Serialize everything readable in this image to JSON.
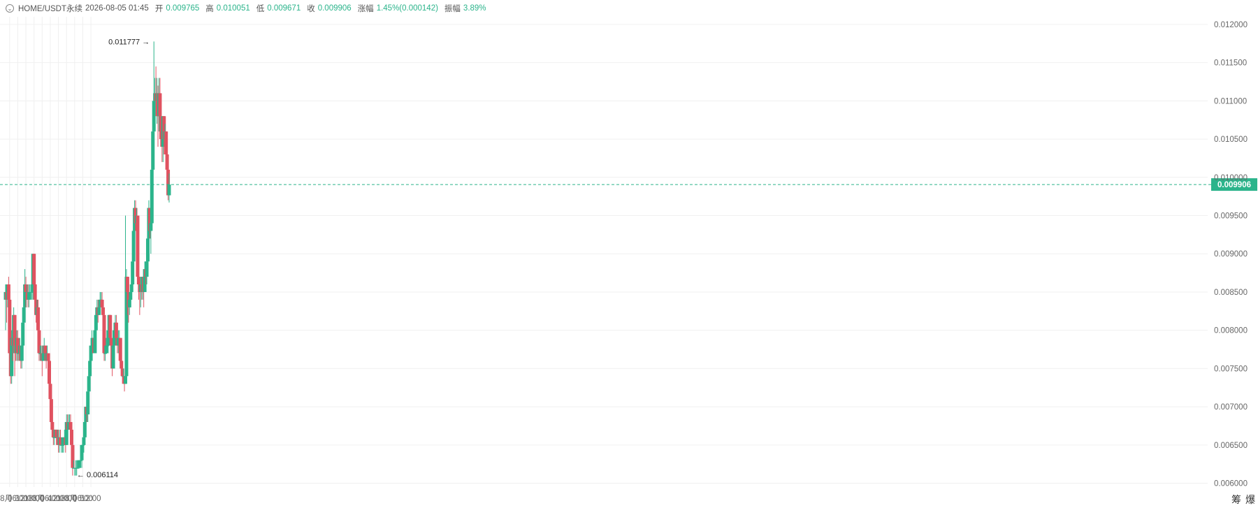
{
  "header": {
    "symbol": "HOME/USDT永续",
    "datetime": "2026-08-05 01:45",
    "open_label": "开",
    "open": "0.009765",
    "high_label": "高",
    "high": "0.010051",
    "low_label": "低",
    "low": "0.009671",
    "close_label": "收",
    "close": "0.009906",
    "change_label": "涨幅",
    "change": "1.45%(0.000142)",
    "amplitude_label": "振幅",
    "amplitude": "3.89%"
  },
  "side_labels": {
    "chips": "筹",
    "liq": "爆"
  },
  "colors": {
    "up": "#2bb48b",
    "down": "#e05260",
    "current_price_bg": "#2bb48b",
    "grid": "#f0f0f0"
  },
  "chart_data": {
    "type": "candlestick",
    "interval_minutes": 45,
    "start_time": "2026-08-02 21:00",
    "ylim": [
      0.00595,
      0.0121
    ],
    "y_ticks": [
      "0.012000",
      "0.011500",
      "0.011000",
      "0.010500",
      "0.010000",
      "0.009500",
      "0.009000",
      "0.008500",
      "0.008000",
      "0.007500",
      "0.007000",
      "0.006500",
      "0.006000"
    ],
    "x_ticks": [
      {
        "time": "2026-08-03 00:00",
        "label": "8月 3"
      },
      {
        "time": "2026-08-03 06:00",
        "label": "06:00"
      },
      {
        "time": "2026-08-03 12:00",
        "label": "12:00"
      },
      {
        "time": "2026-08-03 18:00",
        "label": "18:00"
      },
      {
        "time": "2026-08-04 00:00",
        "label": "8月 4"
      },
      {
        "time": "2026-08-04 06:00",
        "label": "06:00"
      },
      {
        "time": "2026-08-04 12:00",
        "label": "12:00"
      },
      {
        "time": "2026-08-04 18:00",
        "label": "18:00"
      },
      {
        "time": "2026-08-05 00:00",
        "label": "8月 5"
      },
      {
        "time": "2026-08-05 06:00",
        "label": "06:00"
      },
      {
        "time": "2026-08-05 12:00",
        "label": "12:00"
      }
    ],
    "current_price": "0.009906",
    "high_marker": {
      "label": "0.011777",
      "value": 0.011777
    },
    "low_marker": {
      "label": "0.006114",
      "value": 0.006114
    },
    "candles": [
      [
        0.0084,
        0.0085,
        0.0086,
        0.008
      ],
      [
        0.0085,
        0.0084,
        0.0085,
        0.0081
      ],
      [
        0.0084,
        0.0086,
        0.0086,
        0.0083
      ],
      [
        0.0086,
        0.0084,
        0.0087,
        0.0083
      ],
      [
        0.0084,
        0.0077,
        0.0085,
        0.0076
      ],
      [
        0.0077,
        0.0074,
        0.0078,
        0.0073
      ],
      [
        0.0074,
        0.0079,
        0.008,
        0.0073
      ],
      [
        0.0079,
        0.0078,
        0.008,
        0.0076
      ],
      [
        0.0078,
        0.0082,
        0.0083,
        0.0077
      ],
      [
        0.0082,
        0.0078,
        0.0082,
        0.0074
      ],
      [
        0.0078,
        0.0077,
        0.0079,
        0.0076
      ],
      [
        0.0077,
        0.0079,
        0.008,
        0.0076
      ],
      [
        0.0079,
        0.0077,
        0.008,
        0.0076
      ],
      [
        0.0077,
        0.0077,
        0.0078,
        0.0076
      ],
      [
        0.0077,
        0.0078,
        0.0079,
        0.0076
      ],
      [
        0.0078,
        0.0076,
        0.0078,
        0.0075
      ],
      [
        0.0076,
        0.0078,
        0.0078,
        0.0075
      ],
      [
        0.0078,
        0.0081,
        0.0082,
        0.0077
      ],
      [
        0.0081,
        0.0083,
        0.0084,
        0.008
      ],
      [
        0.0083,
        0.0086,
        0.0088,
        0.0083
      ],
      [
        0.0086,
        0.0085,
        0.0087,
        0.0083
      ],
      [
        0.0085,
        0.0085,
        0.0086,
        0.0084
      ],
      [
        0.0085,
        0.0084,
        0.0086,
        0.0083
      ],
      [
        0.0084,
        0.0085,
        0.0086,
        0.0083
      ],
      [
        0.0085,
        0.0085,
        0.0086,
        0.0084
      ],
      [
        0.0085,
        0.0085,
        0.0086,
        0.0084
      ],
      [
        0.0085,
        0.0085,
        0.0085,
        0.0084
      ],
      [
        0.0085,
        0.009,
        0.009,
        0.0084
      ],
      [
        0.009,
        0.0086,
        0.009,
        0.0085
      ],
      [
        0.0086,
        0.0084,
        0.0086,
        0.0083
      ],
      [
        0.0084,
        0.0082,
        0.0085,
        0.0081
      ],
      [
        0.0082,
        0.0083,
        0.0084,
        0.008
      ],
      [
        0.0083,
        0.008,
        0.0084,
        0.0079
      ],
      [
        0.008,
        0.0077,
        0.0081,
        0.0076
      ],
      [
        0.0077,
        0.0077,
        0.0078,
        0.0076
      ],
      [
        0.0077,
        0.0077,
        0.0078,
        0.0076
      ],
      [
        0.0077,
        0.0076,
        0.0078,
        0.0074
      ],
      [
        0.0076,
        0.0077,
        0.0078,
        0.0076
      ],
      [
        0.0077,
        0.0078,
        0.0079,
        0.0077
      ],
      [
        0.0078,
        0.0077,
        0.0078,
        0.0076
      ],
      [
        0.0077,
        0.0076,
        0.0078,
        0.0075
      ],
      [
        0.0076,
        0.0077,
        0.0078,
        0.0076
      ],
      [
        0.0077,
        0.0076,
        0.0077,
        0.0075
      ],
      [
        0.0076,
        0.0073,
        0.0076,
        0.0072
      ],
      [
        0.0073,
        0.0071,
        0.0074,
        0.007
      ],
      [
        0.0071,
        0.0068,
        0.0071,
        0.0067
      ],
      [
        0.0068,
        0.0067,
        0.0069,
        0.0066
      ],
      [
        0.0067,
        0.0066,
        0.0067,
        0.0065
      ],
      [
        0.0066,
        0.0066,
        0.0067,
        0.0065
      ],
      [
        0.0066,
        0.0067,
        0.0067,
        0.0066
      ],
      [
        0.0067,
        0.0066,
        0.0067,
        0.0065
      ],
      [
        0.0066,
        0.0066,
        0.0067,
        0.0065
      ],
      [
        0.0066,
        0.0065,
        0.0067,
        0.0064
      ],
      [
        0.0065,
        0.0066,
        0.0067,
        0.0064
      ],
      [
        0.0066,
        0.0065,
        0.0067,
        0.0065
      ],
      [
        0.0065,
        0.0065,
        0.0066,
        0.0064
      ],
      [
        0.0065,
        0.0065,
        0.0066,
        0.0064
      ],
      [
        0.0065,
        0.0066,
        0.0066,
        0.0064
      ],
      [
        0.0066,
        0.0066,
        0.0067,
        0.0065
      ],
      [
        0.0066,
        0.0065,
        0.0067,
        0.0064
      ],
      [
        0.0065,
        0.0068,
        0.0069,
        0.0065
      ],
      [
        0.0068,
        0.0067,
        0.0069,
        0.0067
      ],
      [
        0.0067,
        0.0068,
        0.0069,
        0.0067
      ],
      [
        0.0068,
        0.0068,
        0.0069,
        0.0067
      ],
      [
        0.0068,
        0.0067,
        0.0069,
        0.0066
      ],
      [
        0.0067,
        0.0065,
        0.0067,
        0.0064
      ],
      [
        0.0065,
        0.0062,
        0.0065,
        0.0061
      ],
      [
        0.0062,
        0.0062,
        0.0063,
        0.0062
      ],
      [
        0.0062,
        0.0062,
        0.0062,
        0.0061
      ],
      [
        0.0062,
        0.0062,
        0.0063,
        0.0061
      ],
      [
        0.0062,
        0.0062,
        0.0063,
        0.0061
      ],
      [
        0.0062,
        0.0062,
        0.0063,
        0.0062
      ],
      [
        0.0062,
        0.0063,
        0.0063,
        0.0062
      ],
      [
        0.0063,
        0.0063,
        0.0063,
        0.0062
      ],
      [
        0.0063,
        0.0063,
        0.0064,
        0.0062
      ],
      [
        0.0063,
        0.0065,
        0.0065,
        0.0062
      ],
      [
        0.0065,
        0.0065,
        0.0066,
        0.0064
      ],
      [
        0.0065,
        0.0066,
        0.0066,
        0.0064
      ],
      [
        0.0066,
        0.0068,
        0.0069,
        0.0065
      ],
      [
        0.0068,
        0.007,
        0.007,
        0.0067
      ],
      [
        0.007,
        0.0069,
        0.0071,
        0.0068
      ],
      [
        0.0069,
        0.0072,
        0.0072,
        0.0068
      ],
      [
        0.0072,
        0.0074,
        0.0075,
        0.0071
      ],
      [
        0.0074,
        0.0076,
        0.0077,
        0.0073
      ],
      [
        0.0076,
        0.0078,
        0.0079,
        0.0075
      ],
      [
        0.0078,
        0.0078,
        0.008,
        0.0077
      ],
      [
        0.0078,
        0.0079,
        0.0079,
        0.0077
      ],
      [
        0.0079,
        0.0077,
        0.008,
        0.0077
      ],
      [
        0.0077,
        0.008,
        0.0081,
        0.0077
      ],
      [
        0.008,
        0.0082,
        0.0083,
        0.0079
      ],
      [
        0.0082,
        0.0083,
        0.0084,
        0.0081
      ],
      [
        0.0083,
        0.0082,
        0.0084,
        0.0081
      ],
      [
        0.0082,
        0.0083,
        0.0084,
        0.0082
      ],
      [
        0.0083,
        0.0084,
        0.0085,
        0.0083
      ],
      [
        0.0084,
        0.0084,
        0.0085,
        0.0083
      ],
      [
        0.0084,
        0.0083,
        0.0085,
        0.0082
      ],
      [
        0.0083,
        0.0082,
        0.0083,
        0.008
      ],
      [
        0.0082,
        0.0077,
        0.0082,
        0.0076
      ],
      [
        0.0077,
        0.0077,
        0.0078,
        0.0076
      ],
      [
        0.0077,
        0.0078,
        0.0079,
        0.0077
      ],
      [
        0.0078,
        0.0078,
        0.0079,
        0.0077
      ],
      [
        0.0078,
        0.008,
        0.008,
        0.0077
      ],
      [
        0.008,
        0.0082,
        0.0082,
        0.0078
      ],
      [
        0.0082,
        0.0079,
        0.0082,
        0.0078
      ],
      [
        0.0079,
        0.0078,
        0.008,
        0.0076
      ],
      [
        0.0078,
        0.0075,
        0.0078,
        0.0074
      ],
      [
        0.0075,
        0.0078,
        0.0079,
        0.0075
      ],
      [
        0.0078,
        0.008,
        0.0081,
        0.0078
      ],
      [
        0.008,
        0.0081,
        0.0082,
        0.0079
      ],
      [
        0.0081,
        0.0079,
        0.0082,
        0.0078
      ],
      [
        0.0079,
        0.0078,
        0.008,
        0.0077
      ],
      [
        0.0078,
        0.0079,
        0.008,
        0.0077
      ],
      [
        0.0079,
        0.0079,
        0.008,
        0.0078
      ],
      [
        0.0079,
        0.0076,
        0.0079,
        0.0075
      ],
      [
        0.0076,
        0.0075,
        0.0077,
        0.0074
      ],
      [
        0.0075,
        0.0074,
        0.0076,
        0.0073
      ],
      [
        0.0074,
        0.0074,
        0.0075,
        0.0073
      ],
      [
        0.0074,
        0.0073,
        0.0074,
        0.0072
      ],
      [
        0.0073,
        0.0074,
        0.0095,
        0.0073
      ],
      [
        0.0074,
        0.0087,
        0.0088,
        0.0073
      ],
      [
        0.0087,
        0.0085,
        0.0087,
        0.0082
      ],
      [
        0.0085,
        0.0083,
        0.0085,
        0.0081
      ],
      [
        0.0083,
        0.0084,
        0.0085,
        0.0082
      ],
      [
        0.0084,
        0.0085,
        0.0086,
        0.0083
      ],
      [
        0.0085,
        0.0086,
        0.0087,
        0.0084
      ],
      [
        0.0086,
        0.0089,
        0.0089,
        0.0085
      ],
      [
        0.0089,
        0.0093,
        0.0094,
        0.0088
      ],
      [
        0.0093,
        0.0096,
        0.0097,
        0.0092
      ],
      [
        0.0096,
        0.0094,
        0.0097,
        0.0093
      ],
      [
        0.0094,
        0.0095,
        0.0096,
        0.0093
      ],
      [
        0.0095,
        0.0087,
        0.0095,
        0.0086
      ],
      [
        0.0087,
        0.0086,
        0.0087,
        0.0084
      ],
      [
        0.0086,
        0.0085,
        0.0086,
        0.0082
      ],
      [
        0.0085,
        0.0086,
        0.0087,
        0.0083
      ],
      [
        0.0086,
        0.0085,
        0.0087,
        0.0084
      ],
      [
        0.0085,
        0.0087,
        0.0087,
        0.0084
      ],
      [
        0.0087,
        0.0085,
        0.0087,
        0.0083
      ],
      [
        0.0085,
        0.0088,
        0.0089,
        0.0085
      ],
      [
        0.0088,
        0.0087,
        0.0089,
        0.0086
      ],
      [
        0.0087,
        0.0089,
        0.009,
        0.0086
      ],
      [
        0.0089,
        0.0092,
        0.0093,
        0.0088
      ],
      [
        0.0092,
        0.0096,
        0.0097,
        0.0091
      ],
      [
        0.0096,
        0.0093,
        0.0096,
        0.0092
      ],
      [
        0.0093,
        0.0094,
        0.0095,
        0.009
      ],
      [
        0.0094,
        0.0101,
        0.0101,
        0.0093
      ],
      [
        0.0101,
        0.0106,
        0.0107,
        0.01
      ],
      [
        0.0106,
        0.011,
        0.011777,
        0.0105
      ],
      [
        0.011,
        0.0111,
        0.0113,
        0.0107
      ],
      [
        0.0111,
        0.011,
        0.01145,
        0.0108
      ],
      [
        0.011,
        0.0111,
        0.0113,
        0.0107
      ],
      [
        0.0111,
        0.0108,
        0.0112,
        0.0104
      ],
      [
        0.0108,
        0.0111,
        0.0113,
        0.0106
      ],
      [
        0.0111,
        0.0108,
        0.0113,
        0.0107
      ],
      [
        0.0108,
        0.0105,
        0.0109,
        0.0104
      ],
      [
        0.0105,
        0.0104,
        0.0106,
        0.0102
      ],
      [
        0.0104,
        0.0108,
        0.0108,
        0.0102
      ],
      [
        0.0108,
        0.0105,
        0.0108,
        0.0103
      ],
      [
        0.0105,
        0.0106,
        0.0107,
        0.0103
      ],
      [
        0.0106,
        0.0103,
        0.0106,
        0.0101
      ],
      [
        0.0103,
        0.0101,
        0.0104,
        0.0099
      ],
      [
        0.0101,
        0.009765,
        0.0102,
        0.0097
      ],
      [
        0.009765,
        0.009906,
        0.010051,
        0.009671
      ]
    ]
  }
}
